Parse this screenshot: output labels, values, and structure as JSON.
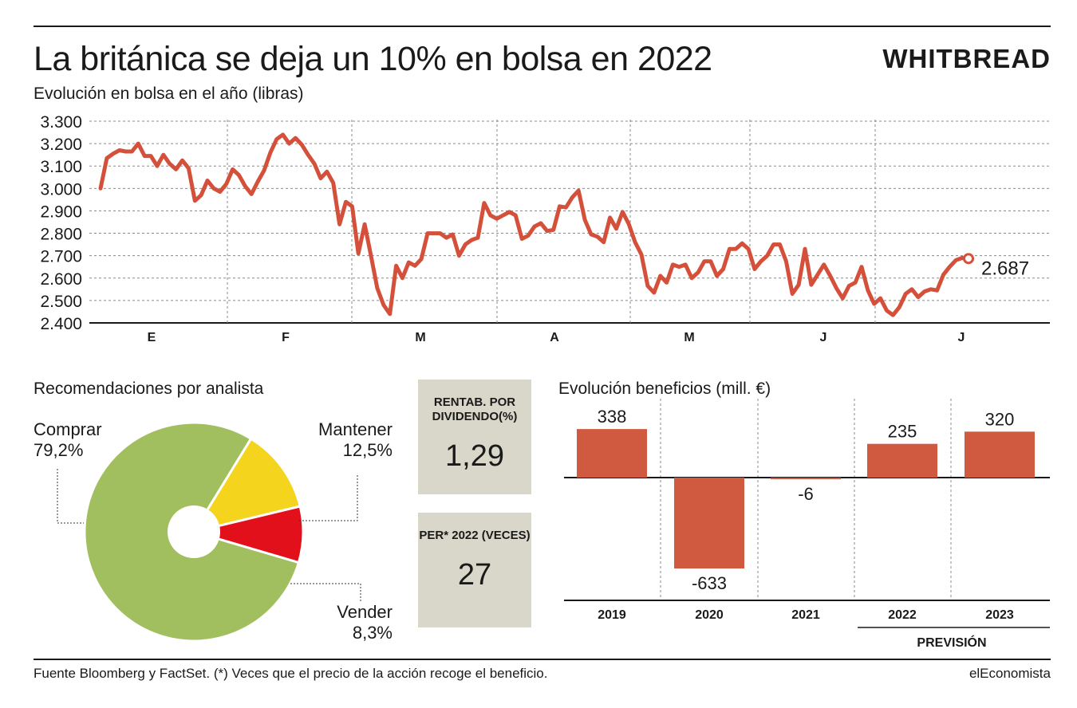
{
  "header": {
    "title": "La británica se deja un 10% en bolsa en 2022",
    "brand": "WHITBREAD",
    "subtitle": "Evolución en bolsa en el año (libras)"
  },
  "colors": {
    "line": "#d4503a",
    "bar": "#d05a40",
    "comprar": "#a2bf5f",
    "mantener": "#f4d41c",
    "vender": "#e2101a",
    "kpi_bg": "#d8d7c9"
  },
  "chart_data": [
    {
      "type": "line",
      "title": "Evolución en bolsa en el año (libras)",
      "y_ticks": [
        "3.300",
        "3.200",
        "3.100",
        "3.000",
        "2.900",
        "2.800",
        "2.700",
        "2.600",
        "2.500",
        "2.400"
      ],
      "ylim": [
        2400,
        3300
      ],
      "months": [
        "E",
        "F",
        "M",
        "A",
        "M",
        "J",
        "J"
      ],
      "grid": true,
      "last_label": "2.687",
      "series": [
        {
          "values": [
            3000,
            3135,
            3155,
            3170,
            3165,
            3165,
            3200,
            3145,
            3145,
            3100,
            3150,
            3110,
            3085,
            3125,
            3090,
            2945,
            2970,
            3035,
            3000,
            2985,
            3020,
            3085,
            3060,
            3010,
            2975,
            3030,
            3080,
            3160,
            3220,
            3240,
            3200,
            3225,
            3195,
            3150,
            3110,
            3045,
            3075,
            3025,
            2840,
            2940,
            2920,
            2710,
            2840,
            2700,
            2555,
            2480,
            2440,
            2655,
            2600,
            2670,
            2655,
            2685,
            2800,
            2800,
            2800,
            2780,
            2795,
            2700,
            2750,
            2770,
            2780,
            2935,
            2880,
            2865,
            2880,
            2895,
            2880,
            2775,
            2790,
            2830,
            2845,
            2810,
            2815,
            2920,
            2915,
            2960,
            2990,
            2860,
            2795,
            2785,
            2760,
            2870,
            2820,
            2895,
            2840,
            2760,
            2705,
            2565,
            2535,
            2610,
            2580,
            2660,
            2650,
            2660,
            2600,
            2625,
            2675,
            2675,
            2610,
            2640,
            2730,
            2730,
            2755,
            2730,
            2640,
            2675,
            2700,
            2750,
            2750,
            2675,
            2530,
            2570,
            2730,
            2570,
            2615,
            2660,
            2610,
            2555,
            2510,
            2565,
            2580,
            2650,
            2545,
            2485,
            2510,
            2455,
            2435,
            2470,
            2530,
            2550,
            2515,
            2540,
            2550,
            2545,
            2615,
            2650,
            2680,
            2690,
            2687
          ]
        }
      ]
    },
    {
      "type": "pie",
      "title": "Recomendaciones por analista",
      "slices": [
        {
          "name": "Comprar",
          "label": "79,2%",
          "value": 79.2
        },
        {
          "name": "Mantener",
          "label": "12,5%",
          "value": 12.5
        },
        {
          "name": "Vender",
          "label": "8,3%",
          "value": 8.3
        }
      ]
    },
    {
      "type": "bar",
      "title": "Evolución beneficios (mill. €)",
      "categories": [
        "2019",
        "2020",
        "2021",
        "2022",
        "2023"
      ],
      "values": [
        338,
        -633,
        -6,
        235,
        320
      ],
      "value_labels": [
        "338",
        "-633",
        "-6",
        "235",
        "320"
      ],
      "forecast_label": "PREVISIÓN",
      "forecast_categories": [
        "2022",
        "2023"
      ]
    }
  ],
  "kpis": [
    {
      "label": "RENTAB. POR DIVIDENDO(%)",
      "value": "1,29"
    },
    {
      "label": "PER* 2022 (VECES)",
      "value": "27"
    }
  ],
  "footer": {
    "source": "Fuente Bloomberg y FactSet. (*) Veces que el precio de la acción recoge el beneficio.",
    "publisher": "elEconomista"
  }
}
